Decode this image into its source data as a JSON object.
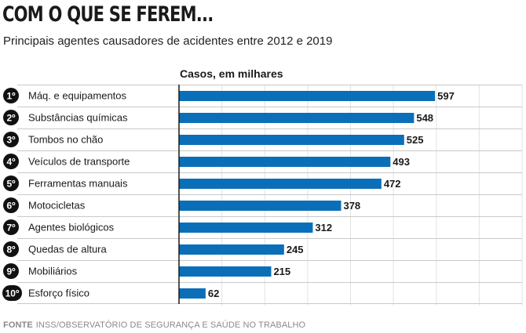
{
  "header": {
    "title": "COM O QUE SE FEREM...",
    "subtitle": "Principais agentes causadores de acidentes entre 2012 e 2019"
  },
  "chart_data": {
    "type": "bar",
    "orientation": "horizontal",
    "metric_label": "Casos, em milhares",
    "ranks": [
      "1º",
      "2º",
      "3º",
      "4º",
      "5º",
      "6º",
      "7º",
      "8º",
      "9º",
      "10º"
    ],
    "categories": [
      "Máq. e equipamentos",
      "Substâncias químicas",
      "Tombos no chão",
      "Veículos de transporte",
      "Ferramentas manuais",
      "Motocicletas",
      "Agentes biológicos",
      "Quedas de altura",
      "Mobiliários",
      "Esforço físico"
    ],
    "values": [
      597,
      548,
      525,
      493,
      472,
      378,
      312,
      245,
      215,
      62
    ],
    "xlim": [
      0,
      800
    ],
    "grid": true,
    "bar_color": "#0a6fb8"
  },
  "footer": {
    "source_label": "FONTE",
    "source_text": "INSS/OBSERVATÓRIO DE SEGURANÇA E SAÚDE NO TRABALHO"
  }
}
